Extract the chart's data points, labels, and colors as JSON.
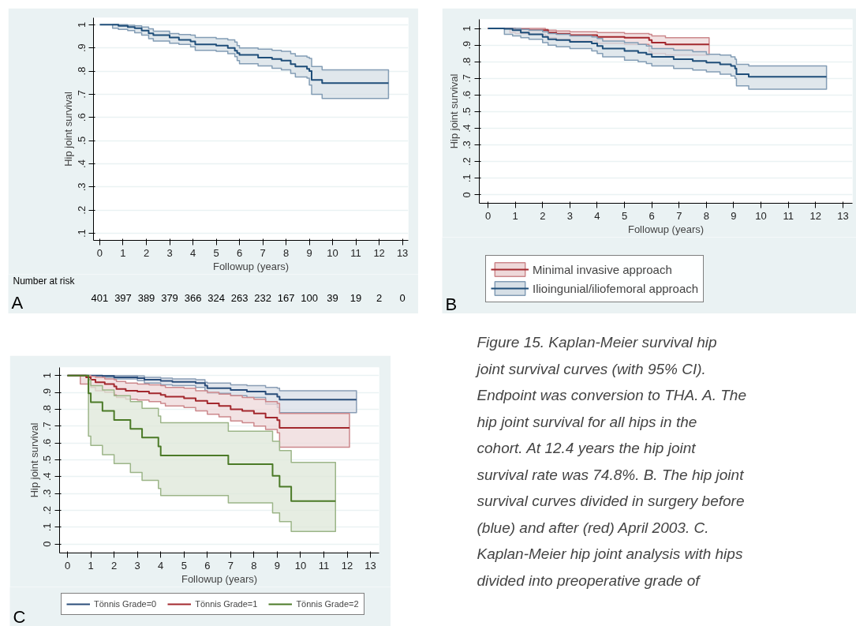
{
  "chart_data": [
    {
      "type": "step",
      "xlabel": "Followup (years)",
      "ylabel": "Hip joint survival",
      "xlim": [
        -0.27,
        13.25
      ],
      "ylim": [
        0.07,
        1.03
      ],
      "xticks": [
        0,
        1,
        2,
        3,
        4,
        5,
        6,
        7,
        8,
        9,
        10,
        11,
        12,
        13
      ],
      "yticks": [
        {
          "value": 0.1,
          "label": ".1"
        },
        {
          "value": 0.2,
          "label": ".2"
        },
        {
          "value": 0.3,
          "label": ".3"
        },
        {
          "value": 0.4,
          "label": ".4"
        },
        {
          "value": 0.5,
          "label": ".5"
        },
        {
          "value": 0.6,
          "label": ".6"
        },
        {
          "value": 0.7,
          "label": ".7"
        },
        {
          "value": 0.8,
          "label": ".8"
        },
        {
          "value": 0.9,
          "label": ".9"
        },
        {
          "value": 1,
          "label": "1"
        }
      ],
      "grid": "y",
      "series": [
        {
          "color": "#1f4e79",
          "x": [
            0,
            0.55,
            0.8,
            1.2,
            1.5,
            1.8,
            2.1,
            2.3,
            3.0,
            3.4,
            3.9,
            4.1,
            5.0,
            5.5,
            5.8,
            5.9,
            6.0,
            6.8,
            7.4,
            7.8,
            8.2,
            8.4,
            8.9,
            9.0,
            9.1,
            9.55,
            12.4
          ],
          "values": [
            1,
            1,
            0.995,
            0.99,
            0.985,
            0.975,
            0.963,
            0.955,
            0.945,
            0.935,
            0.928,
            0.915,
            0.91,
            0.9,
            0.888,
            0.878,
            0.87,
            0.858,
            0.852,
            0.845,
            0.83,
            0.82,
            0.81,
            0.8,
            0.762,
            0.748,
            0.748
          ],
          "upper": [
            null,
            1,
            1,
            0.998,
            0.995,
            0.99,
            0.982,
            0.972,
            0.962,
            0.958,
            0.955,
            0.945,
            0.94,
            0.935,
            0.925,
            0.91,
            0.9,
            0.895,
            0.89,
            0.885,
            0.875,
            0.865,
            0.86,
            0.855,
            0.82,
            0.805,
            0.805
          ],
          "lower": [
            null,
            0.985,
            0.98,
            0.975,
            0.965,
            0.955,
            0.94,
            0.93,
            0.92,
            0.915,
            0.905,
            0.89,
            0.885,
            0.875,
            0.862,
            0.845,
            0.832,
            0.822,
            0.812,
            0.805,
            0.79,
            0.775,
            0.77,
            0.74,
            0.7,
            0.682,
            0.682
          ]
        }
      ],
      "annotations": [
        "A",
        "Number at risk",
        "401",
        "397",
        "389",
        "379",
        "366",
        "324",
        "263",
        "232",
        "167",
        "100",
        "39",
        "19",
        "2",
        "0"
      ]
    },
    {
      "type": "step",
      "xlabel": "Followup (years)",
      "ylabel": "Hip joint survival",
      "xlim": [
        -0.32,
        13.35
      ],
      "ylim": [
        -0.05,
        1.055
      ],
      "xticks": [
        0,
        1,
        2,
        3,
        4,
        5,
        6,
        7,
        8,
        9,
        10,
        11,
        12,
        13
      ],
      "yticks": [
        0,
        {
          "value": 0.1,
          "label": ".1"
        },
        {
          "value": 0.2,
          "label": ".2"
        },
        {
          "value": 0.3,
          "label": ".3"
        },
        {
          "value": 0.4,
          "label": ".4"
        },
        {
          "value": 0.5,
          "label": ".5"
        },
        {
          "value": 0.6,
          "label": ".6"
        },
        {
          "value": 0.7,
          "label": ".7"
        },
        {
          "value": 0.8,
          "label": ".8"
        },
        {
          "value": 0.9,
          "label": ".9"
        },
        {
          "value": 1,
          "label": "1"
        }
      ],
      "grid": "y",
      "legend": "bottom",
      "series": [
        {
          "name": "Minimal invasive approach",
          "color": "#a3282e",
          "x": [
            0,
            0.8,
            1.0,
            1.5,
            2.1,
            2.2,
            2.5,
            3.0,
            4.0,
            5.0,
            5.9,
            6.0,
            6.5,
            8.1
          ],
          "values": [
            1,
            1,
            0.995,
            0.99,
            0.99,
            0.975,
            0.968,
            0.96,
            0.95,
            0.945,
            0.93,
            0.915,
            0.905,
            0.905
          ],
          "upper": [
            1,
            1,
            1,
            1,
            0.995,
            0.99,
            0.985,
            0.98,
            0.975,
            0.97,
            0.965,
            0.955,
            0.945,
            0.945
          ],
          "lower": [
            1,
            0.975,
            0.97,
            0.965,
            0.955,
            0.945,
            0.935,
            0.925,
            0.91,
            0.905,
            0.86,
            0.85,
            0.84,
            0.84
          ]
        },
        {
          "name": "Ilioingunial/iliofemoral approach",
          "color": "#1f4e79",
          "x": [
            0,
            0.6,
            0.9,
            1.2,
            1.5,
            2.0,
            2.2,
            2.5,
            3.0,
            3.8,
            4.0,
            4.2,
            5.0,
            5.5,
            5.8,
            6.0,
            6.8,
            7.5,
            8.0,
            8.5,
            8.9,
            9.05,
            9.1,
            9.55,
            12.4
          ],
          "values": [
            1,
            0.998,
            0.99,
            0.975,
            0.965,
            0.95,
            0.935,
            0.93,
            0.92,
            0.91,
            0.895,
            0.88,
            0.865,
            0.855,
            0.845,
            0.83,
            0.815,
            0.805,
            0.795,
            0.785,
            0.775,
            0.76,
            0.725,
            0.71,
            0.71
          ],
          "upper": [
            null,
            1,
            1,
            0.995,
            0.99,
            0.98,
            0.97,
            0.965,
            0.955,
            0.95,
            0.94,
            0.925,
            0.915,
            0.905,
            0.895,
            0.88,
            0.87,
            0.86,
            0.845,
            0.84,
            0.83,
            0.815,
            0.785,
            0.775,
            0.775
          ],
          "lower": [
            null,
            0.965,
            0.955,
            0.945,
            0.935,
            0.915,
            0.9,
            0.89,
            0.88,
            0.865,
            0.85,
            0.83,
            0.81,
            0.8,
            0.79,
            0.775,
            0.76,
            0.75,
            0.74,
            0.725,
            0.715,
            0.7,
            0.655,
            0.635,
            0.635
          ]
        }
      ],
      "annotations": [
        "B"
      ]
    },
    {
      "type": "step",
      "xlabel": "Followup (years)",
      "ylabel": "Hip joint survival",
      "xlim": [
        -0.34,
        13.37
      ],
      "ylim": [
        -0.053,
        1.048
      ],
      "xticks": [
        0,
        1,
        2,
        3,
        4,
        5,
        6,
        7,
        8,
        9,
        10,
        11,
        12,
        13
      ],
      "yticks": [
        0,
        {
          "value": 0.1,
          "label": ".1"
        },
        {
          "value": 0.2,
          "label": ".2"
        },
        {
          "value": 0.3,
          "label": ".3"
        },
        {
          "value": 0.4,
          "label": ".4"
        },
        {
          "value": 0.5,
          "label": ".5"
        },
        {
          "value": 0.6,
          "label": ".6"
        },
        {
          "value": 0.7,
          "label": ".7"
        },
        {
          "value": 0.8,
          "label": ".8"
        },
        {
          "value": 0.9,
          "label": ".9"
        },
        {
          "value": 1,
          "label": "1"
        }
      ],
      "grid": "y",
      "legend": "bottom",
      "series": [
        {
          "name": "Tönnis Grade=0",
          "color": "#2a4d7a",
          "x": [
            0,
            1.5,
            2,
            3,
            3.3,
            4,
            4.5,
            5.5,
            5.9,
            6.0,
            7.0,
            7.7,
            8.5,
            9.0,
            9.1,
            12.4
          ],
          "values": [
            1,
            0.998,
            0.99,
            0.985,
            0.975,
            0.968,
            0.962,
            0.955,
            0.94,
            0.925,
            0.915,
            0.905,
            0.89,
            0.875,
            0.857,
            0.857
          ],
          "upper": [
            1,
            1,
            1,
            0.998,
            0.99,
            0.985,
            0.98,
            0.975,
            0.96,
            0.955,
            0.945,
            0.94,
            0.93,
            0.925,
            0.91,
            0.91
          ],
          "lower": [
            1,
            0.99,
            0.98,
            0.97,
            0.955,
            0.945,
            0.94,
            0.93,
            0.91,
            0.895,
            0.88,
            0.87,
            0.83,
            0.81,
            0.78,
            0.78
          ]
        },
        {
          "name": "Tönnis Grade=1",
          "color": "#a3282e",
          "x": [
            0,
            0.55,
            0.8,
            1,
            1.2,
            1.6,
            2.0,
            2.1,
            2.5,
            3.0,
            3.5,
            4.0,
            4.2,
            5.0,
            5.5,
            6.0,
            6.5,
            7.0,
            7.5,
            8.0,
            8.5,
            9.0,
            9.1,
            12.1
          ],
          "values": [
            1,
            1,
            0.99,
            0.975,
            0.96,
            0.95,
            0.935,
            0.92,
            0.91,
            0.905,
            0.895,
            0.885,
            0.875,
            0.865,
            0.85,
            0.835,
            0.82,
            0.8,
            0.79,
            0.775,
            0.75,
            0.735,
            0.69,
            0.69
          ],
          "upper": [
            null,
            1,
            1,
            0.995,
            0.99,
            0.98,
            0.975,
            0.965,
            0.955,
            0.95,
            0.945,
            0.94,
            0.93,
            0.925,
            0.91,
            0.9,
            0.89,
            0.88,
            0.87,
            0.86,
            0.845,
            0.835,
            0.775,
            0.775
          ],
          "lower": [
            null,
            0.95,
            0.95,
            0.93,
            0.91,
            0.9,
            0.885,
            0.87,
            0.86,
            0.855,
            0.845,
            0.835,
            0.82,
            0.81,
            0.79,
            0.77,
            0.755,
            0.73,
            0.72,
            0.7,
            0.68,
            0.66,
            0.575,
            0.575
          ]
        },
        {
          "name": "Tönnis Grade=2",
          "color": "#4b7a27",
          "x": [
            0,
            0.9,
            1.0,
            1.5,
            2.0,
            2.7,
            3.2,
            3.9,
            4.0,
            6.9,
            8.8,
            9.1,
            9.6,
            11.5
          ],
          "values": [
            1,
            0.895,
            0.842,
            0.79,
            0.737,
            0.684,
            0.632,
            0.579,
            0.526,
            0.474,
            0.405,
            0.34,
            0.255,
            0.255
          ],
          "upper": [
            null,
            0.975,
            0.94,
            0.915,
            0.88,
            0.845,
            0.805,
            0.76,
            0.72,
            0.67,
            0.61,
            0.555,
            0.485,
            0.485
          ],
          "lower": [
            null,
            0.64,
            0.585,
            0.53,
            0.478,
            0.425,
            0.378,
            0.33,
            0.288,
            0.245,
            0.185,
            0.133,
            0.075,
            0.075
          ]
        }
      ],
      "annotations": [
        "C"
      ]
    },
    {
      "type": "other",
      "annotations": [
        "Figure 15. Kaplan-Meier survival hip",
        "joint survival curves (with 95% CI).",
        "Endpoint was conversion to THA. A. The",
        "hip joint survival for all hips in the",
        "cohort. At 12.4 years the hip joint",
        "survival rate was 74.8%. B. The hip joint",
        "survival curves divided in surgery before",
        "(blue) and after (red) April 2003. C.",
        "Kaplan-Meier hip joint analysis with hips",
        "divided into preoperative grade of"
      ]
    }
  ]
}
